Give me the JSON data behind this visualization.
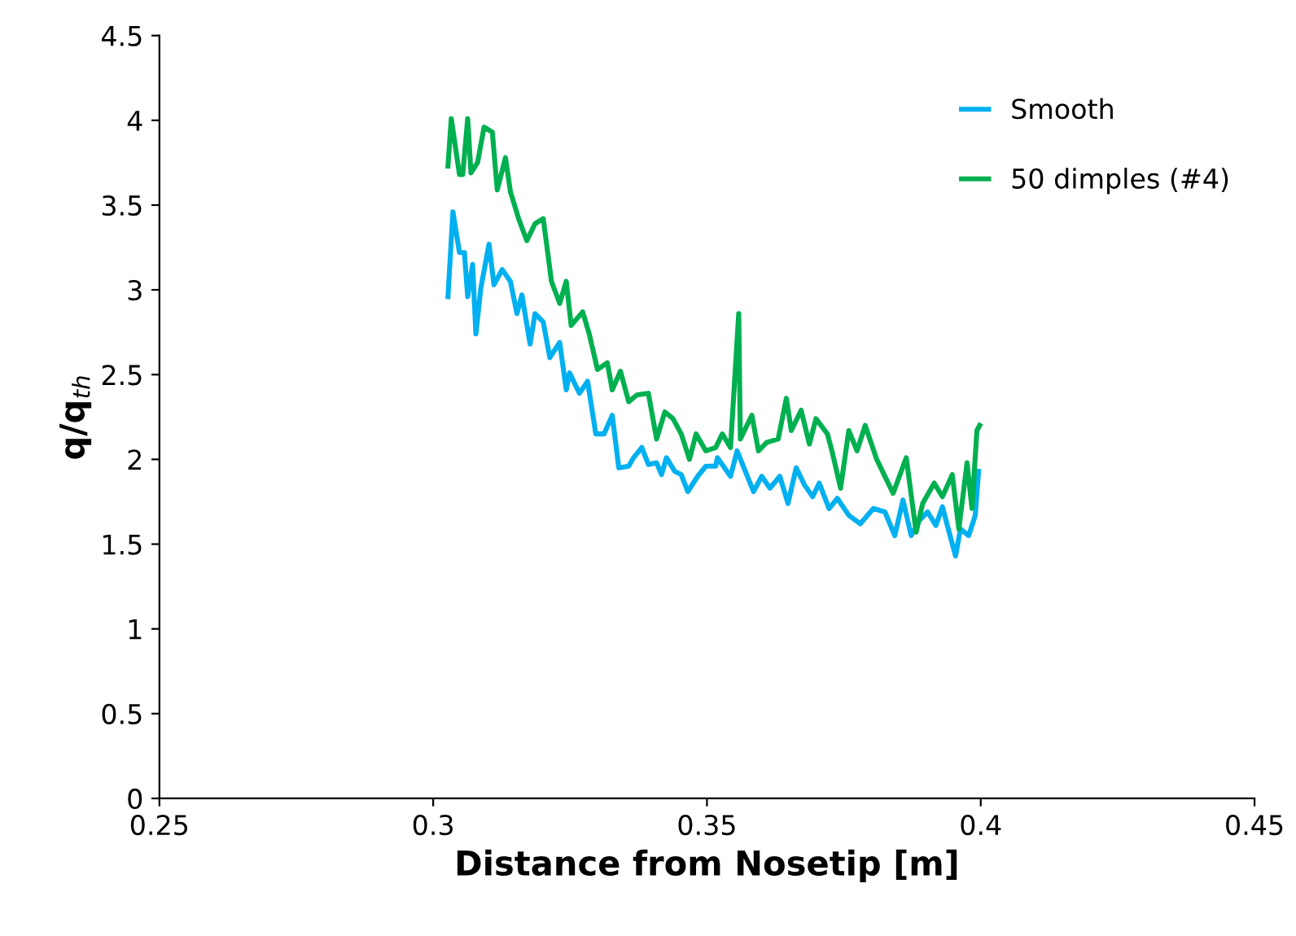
{
  "chart_data": {
    "type": "line",
    "xlabel": "Distance from Nosetip [m]",
    "ylabel": "q/q$_{th}$",
    "xlim": [
      0.25,
      0.45
    ],
    "xticks": [
      0.25,
      0.3,
      0.35,
      0.4,
      0.45
    ],
    "ylim": [
      0,
      4.5
    ],
    "yticks": [
      0,
      0.5,
      1,
      1.5,
      2,
      2.5,
      3,
      3.5,
      4,
      4.5
    ],
    "grid": false,
    "legend": "top right",
    "marker": "none",
    "line_style": "solid",
    "series": [
      {
        "name": "Smooth",
        "color": "#00b0f0",
        "x": [
          0.3027,
          0.3036,
          0.3048,
          0.3057,
          0.3063,
          0.3072,
          0.3078,
          0.3087,
          0.3102,
          0.3111,
          0.3126,
          0.3141,
          0.3153,
          0.3162,
          0.3177,
          0.3186,
          0.3201,
          0.3213,
          0.3231,
          0.3243,
          0.3249,
          0.3267,
          0.3282,
          0.3297,
          0.3312,
          0.3327,
          0.3339,
          0.3357,
          0.3366,
          0.3381,
          0.3393,
          0.3408,
          0.3417,
          0.3426,
          0.3441,
          0.3453,
          0.3465,
          0.3483,
          0.3498,
          0.3516,
          0.3519,
          0.3543,
          0.3555,
          0.357,
          0.3585,
          0.36,
          0.3615,
          0.3633,
          0.3648,
          0.3663,
          0.3678,
          0.3693,
          0.3705,
          0.3723,
          0.3738,
          0.3759,
          0.378,
          0.3804,
          0.3825,
          0.3843,
          0.3858,
          0.3873,
          0.3888,
          0.3903,
          0.3918,
          0.393,
          0.3939,
          0.3954,
          0.3963,
          0.3978,
          0.399,
          0.3996
        ],
        "values": [
          2.96,
          3.46,
          3.22,
          3.22,
          2.96,
          3.15,
          2.74,
          3.01,
          3.27,
          3.03,
          3.12,
          3.05,
          2.86,
          2.97,
          2.68,
          2.86,
          2.81,
          2.6,
          2.69,
          2.41,
          2.51,
          2.39,
          2.46,
          2.15,
          2.15,
          2.26,
          1.95,
          1.96,
          2.01,
          2.07,
          1.97,
          1.98,
          1.91,
          2.01,
          1.93,
          1.91,
          1.81,
          1.9,
          1.96,
          1.96,
          2.01,
          1.9,
          2.05,
          1.93,
          1.81,
          1.9,
          1.83,
          1.9,
          1.74,
          1.95,
          1.85,
          1.78,
          1.86,
          1.71,
          1.77,
          1.67,
          1.62,
          1.71,
          1.69,
          1.55,
          1.76,
          1.55,
          1.64,
          1.69,
          1.61,
          1.72,
          1.61,
          1.43,
          1.59,
          1.55,
          1.67,
          1.93
        ]
      },
      {
        "name": "50 dimples (#4)",
        "color": "#00b050",
        "x": [
          0.3027,
          0.3033,
          0.3048,
          0.3054,
          0.3063,
          0.3069,
          0.3081,
          0.3093,
          0.3108,
          0.3117,
          0.3132,
          0.3141,
          0.3156,
          0.3171,
          0.3186,
          0.3201,
          0.3216,
          0.3231,
          0.3243,
          0.3252,
          0.3273,
          0.3285,
          0.33,
          0.3318,
          0.3327,
          0.3342,
          0.3357,
          0.3372,
          0.3393,
          0.3408,
          0.3423,
          0.3438,
          0.3453,
          0.3468,
          0.348,
          0.3498,
          0.3516,
          0.3528,
          0.3543,
          0.3558,
          0.3561,
          0.3582,
          0.3594,
          0.3609,
          0.363,
          0.3645,
          0.3654,
          0.3672,
          0.3687,
          0.3699,
          0.372,
          0.3729,
          0.3744,
          0.3759,
          0.3774,
          0.3789,
          0.381,
          0.384,
          0.3864,
          0.3882,
          0.3894,
          0.3915,
          0.393,
          0.3948,
          0.396,
          0.3975,
          0.3984,
          0.3993,
          0.3998
        ],
        "values": [
          3.73,
          4.01,
          3.68,
          3.68,
          4.01,
          3.69,
          3.75,
          3.96,
          3.93,
          3.59,
          3.78,
          3.58,
          3.42,
          3.29,
          3.39,
          3.42,
          3.05,
          2.92,
          3.05,
          2.79,
          2.87,
          2.74,
          2.53,
          2.57,
          2.41,
          2.52,
          2.34,
          2.38,
          2.39,
          2.12,
          2.28,
          2.24,
          2.15,
          2.0,
          2.15,
          2.05,
          2.07,
          2.15,
          2.07,
          2.86,
          2.12,
          2.26,
          2.05,
          2.1,
          2.12,
          2.36,
          2.17,
          2.29,
          2.09,
          2.24,
          2.15,
          2.04,
          1.83,
          2.17,
          2.05,
          2.2,
          2.0,
          1.8,
          2.01,
          1.57,
          1.74,
          1.86,
          1.78,
          1.91,
          1.59,
          1.98,
          1.71,
          2.17,
          2.2
        ]
      }
    ]
  }
}
